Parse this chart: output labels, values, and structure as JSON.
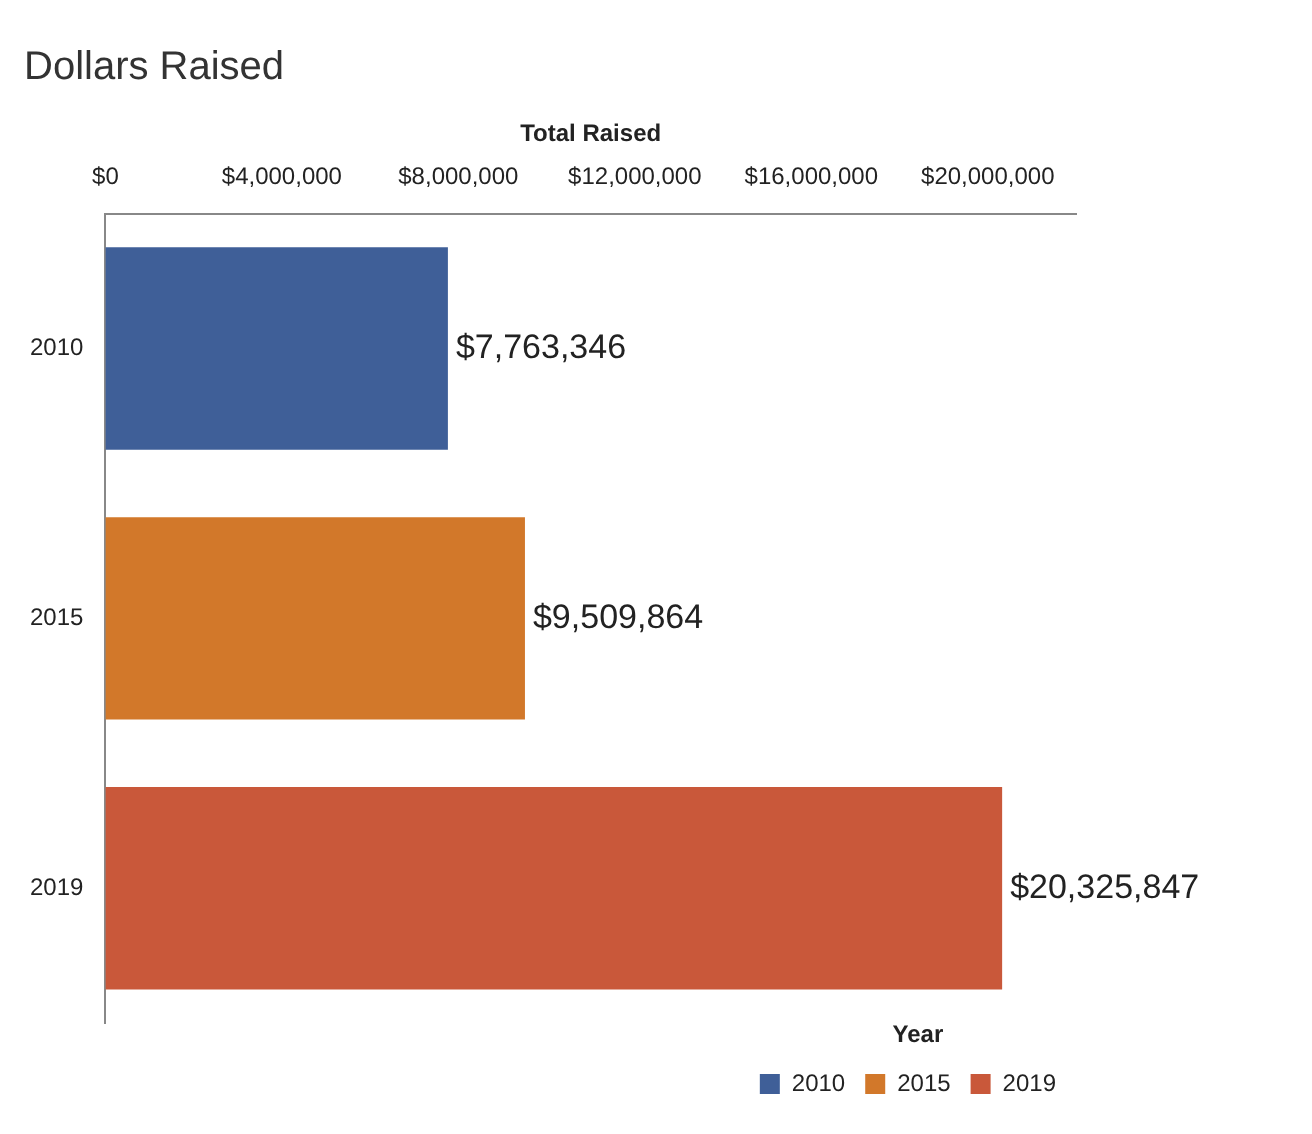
{
  "chart_data": {
    "type": "bar",
    "orientation": "horizontal",
    "title": "Dollars Raised",
    "xlabel": "Total Raised",
    "legend_title": "Year",
    "legend": "bottom right",
    "grid": false,
    "categories": [
      "2010",
      "2015",
      "2019"
    ],
    "series": [
      {
        "name": "2010",
        "color": "#3f5f98",
        "values": [
          7763346,
          null,
          null
        ],
        "value_labels": [
          "$7,763,346",
          null,
          null
        ]
      },
      {
        "name": "2015",
        "color": "#d2782a",
        "values": [
          null,
          9509864,
          null
        ],
        "value_labels": [
          null,
          "$9,509,864",
          null
        ]
      },
      {
        "name": "2019",
        "color": "#c9583a",
        "values": [
          null,
          null,
          20325847
        ],
        "value_labels": [
          null,
          null,
          "$20,325,847"
        ]
      }
    ],
    "xlim": [
      0,
      22000000
    ],
    "xticks": [
      {
        "value": 0,
        "label": "$0"
      },
      {
        "value": 4000000,
        "label": "$4,000,000"
      },
      {
        "value": 8000000,
        "label": "$8,000,000"
      },
      {
        "value": 12000000,
        "label": "$12,000,000"
      },
      {
        "value": 16000000,
        "label": "$16,000,000"
      },
      {
        "value": 20000000,
        "label": "$20,000,000"
      }
    ]
  }
}
